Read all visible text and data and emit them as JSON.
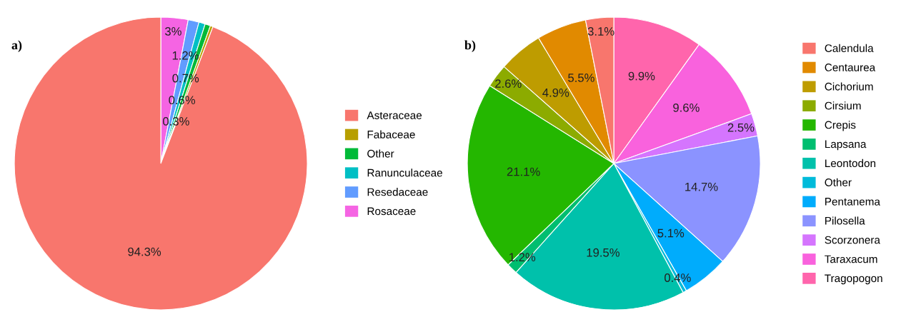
{
  "chart_data": [
    {
      "type": "pie",
      "title": "a)",
      "categories": [
        "Asteraceae",
        "Fabaceae",
        "Other",
        "Ranunculaceae",
        "Resedaceae",
        "Rosaceae"
      ],
      "values": [
        94.3,
        0.3,
        0.6,
        0.7,
        1.2,
        3
      ],
      "value_labels": [
        "94.3%",
        "0.3%",
        "0.6%",
        "0.7%",
        "1.2%",
        "3%"
      ],
      "colors": [
        "#F8766D",
        "#B79F00",
        "#00BA38",
        "#00BFC4",
        "#619CFF",
        "#F564E3"
      ],
      "legend": "right"
    },
    {
      "type": "pie",
      "title": "b)",
      "categories": [
        "Calendula",
        "Centaurea",
        "Cichorium",
        "Cirsium",
        "Crepis",
        "Lapsana",
        "Leontodon",
        "Other",
        "Pentanema",
        "Pilosella",
        "Scorzonera",
        "Taraxacum",
        "Tragopogon"
      ],
      "values": [
        3.1,
        5.5,
        4.9,
        2.6,
        21.1,
        1.2,
        19.5,
        0.4,
        5.1,
        14.7,
        2.5,
        9.6,
        9.9
      ],
      "value_labels": [
        "3.1%",
        "5.5%",
        "4.9%",
        "2.6%",
        "21.1%",
        "1.2%",
        "19.5%",
        "0.4%",
        "5.1%",
        "14.7%",
        "2.5%",
        "9.6%",
        "9.9%"
      ],
      "colors": [
        "#F8766D",
        "#E18A00",
        "#BE9C00",
        "#8CAB00",
        "#24B700",
        "#00BE70",
        "#00C1AB",
        "#00BBDA",
        "#00ACFC",
        "#8B93FF",
        "#D575FE",
        "#F962DD",
        "#FF65AC"
      ],
      "legend": "right"
    }
  ]
}
